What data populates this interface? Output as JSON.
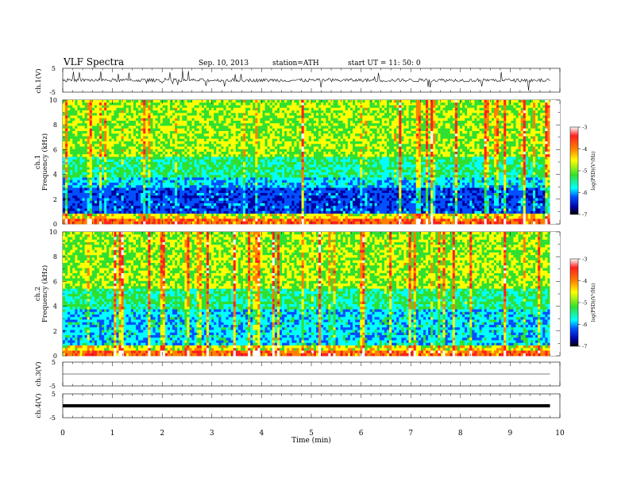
{
  "header": {
    "title": "VLF  Spectra",
    "date": "Sep. 10, 2013",
    "station": "station=ATH",
    "start": "start  UT =   11: 50: 0"
  },
  "colorbar": {
    "label": "log(PSD)(V²/Hz)",
    "ticks": [
      "-3",
      "-4",
      "-5",
      "-6",
      "-7"
    ],
    "colors": [
      "#ffffff",
      "#ff2020",
      "#ff8000",
      "#ffff00",
      "#30e030",
      "#00ffff",
      "#0050ff",
      "#0000a0",
      "#000000"
    ]
  },
  "chart_data": [
    {
      "type": "line",
      "title": "",
      "ylabel": "ch.1(V)",
      "yticks": [
        "5",
        "-5"
      ],
      "ylim": [
        -5,
        5
      ],
      "xlim": [
        0,
        10
      ],
      "series": [
        {
          "x": [
            0,
            9.8
          ],
          "values": [
            0,
            0
          ]
        }
      ]
    },
    {
      "type": "heatmap",
      "ylabel": "ch.1",
      "ylabel2": "Frequency  (kHz)",
      "yticks": [
        "0",
        "2",
        "4",
        "6",
        "8",
        "10"
      ],
      "ylim": [
        0,
        10
      ],
      "xlim": [
        0,
        10
      ],
      "colorbar_range": [
        -7,
        -3
      ]
    },
    {
      "type": "heatmap",
      "ylabel": "ch.2",
      "ylabel2": "Frequency  (kHz)",
      "yticks": [
        "0",
        "2",
        "4",
        "6",
        "8",
        "10"
      ],
      "ylim": [
        0,
        10
      ],
      "xlim": [
        0,
        10
      ],
      "colorbar_range": [
        -7,
        -3
      ]
    },
    {
      "type": "line",
      "ylabel": "ch.3(V)",
      "yticks": [
        "5",
        "-5"
      ],
      "ylim": [
        -5,
        5
      ],
      "xlim": [
        0,
        10
      ],
      "series": [
        {
          "x": [
            0,
            9.8
          ],
          "values": [
            0,
            0
          ]
        }
      ]
    },
    {
      "type": "line",
      "ylabel": "ch.4(V)",
      "yticks": [
        "5",
        "-5"
      ],
      "ylim": [
        -5,
        5
      ],
      "xlim": [
        0,
        10
      ],
      "series": [
        {
          "x": [
            0,
            9.8
          ],
          "values": [
            0,
            0
          ]
        }
      ],
      "xlabel": "Time  (min)",
      "xticks": [
        "0",
        "1",
        "2",
        "3",
        "4",
        "5",
        "6",
        "7",
        "8",
        "9",
        "10"
      ]
    }
  ]
}
